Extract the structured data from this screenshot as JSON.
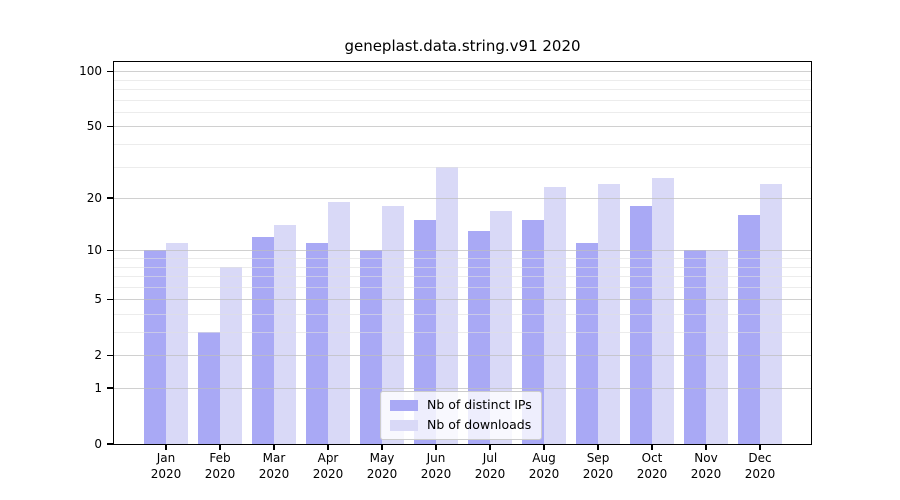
{
  "chart_data": {
    "type": "bar",
    "title": "geneplast.data.string.v91 2020",
    "categories": [
      "Jan 2020",
      "Feb 2020",
      "Mar 2020",
      "Apr 2020",
      "May 2020",
      "Jun 2020",
      "Jul 2020",
      "Aug 2020",
      "Sep 2020",
      "Oct 2020",
      "Nov 2020",
      "Dec 2020"
    ],
    "series": [
      {
        "name": "Nb of distinct IPs",
        "color": "#a9a9f5",
        "values": [
          10,
          3,
          12,
          11,
          10,
          15,
          13,
          15,
          11,
          18,
          10,
          16
        ]
      },
      {
        "name": "Nb of downloads",
        "color": "#d9d9f7",
        "values": [
          11,
          8,
          14,
          19,
          18,
          30,
          17,
          23,
          24,
          26,
          10,
          24
        ]
      }
    ],
    "y_axis": {
      "scale": "log1p",
      "tick_labels": [
        "0",
        "1",
        "2",
        "5",
        "10",
        "20",
        "50",
        "100"
      ],
      "ticks": [
        0,
        1,
        2,
        5,
        10,
        20,
        50,
        100
      ],
      "minor_gridlines": [
        3,
        4,
        6,
        7,
        8,
        9,
        30,
        40,
        60,
        70,
        80,
        90
      ],
      "range": [
        0,
        112
      ]
    },
    "xlabel": "",
    "ylabel": "",
    "grid": true,
    "legend_position": "lower center"
  }
}
